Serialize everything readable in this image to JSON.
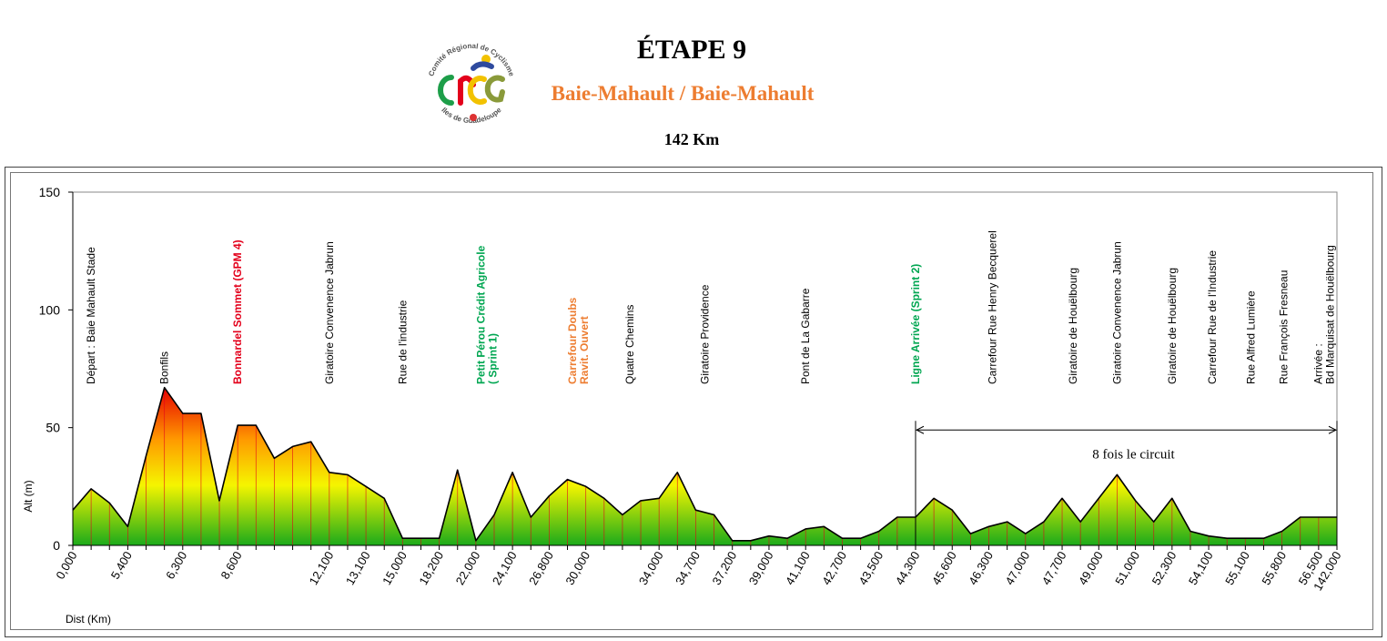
{
  "header": {
    "title": "ÉTAPE 9",
    "route": "Baie-Mahault / Baie-Mahault",
    "distance": "142 Km"
  },
  "logo": {
    "top_text": "Comité Régional de Cyclisme",
    "bottom_text": "Iles de Guadeloupe",
    "letters": "CRCG"
  },
  "colors": {
    "fill_top": "#E60000",
    "fill_mid_orange": "#FF9900",
    "fill_yellow": "#F5F500",
    "fill_bottom": "#1BAA1B",
    "accent_red": "#E3001B",
    "accent_green": "#00A651",
    "accent_orange": "#ED7D31"
  },
  "chart_data": {
    "type": "area",
    "title": "",
    "xlabel": "Dist (Km)",
    "ylabel": "Alt (m)",
    "ylim": [
      0,
      150
    ],
    "yticks": [
      "0",
      "50",
      "100",
      "150"
    ],
    "grid": false,
    "tick_labels": [
      "0,000",
      "5,400",
      "6,300",
      "8,600",
      "12,100",
      "13,100",
      "15,000",
      "18,200",
      "22,000",
      "24,100",
      "26,800",
      "30,000",
      "34,000",
      "34,700",
      "37,200",
      "39,000",
      "41,100",
      "42,700",
      "43,500",
      "44,300",
      "45,600",
      "46,300",
      "47,000",
      "47,700",
      "49,000",
      "51,000",
      "52,300",
      "54,100",
      "55,100",
      "55,800",
      "56,500",
      "142,000"
    ],
    "points": [
      {
        "i": 0,
        "y": 15
      },
      {
        "i": 1,
        "y": 24
      },
      {
        "i": 2,
        "y": 18
      },
      {
        "i": 3,
        "y": 8
      },
      {
        "i": 4,
        "y": 38
      },
      {
        "i": 5,
        "y": 67
      },
      {
        "i": 6,
        "y": 56
      },
      {
        "i": 7,
        "y": 56
      },
      {
        "i": 8,
        "y": 19
      },
      {
        "i": 9,
        "y": 51
      },
      {
        "i": 10,
        "y": 51
      },
      {
        "i": 11,
        "y": 37
      },
      {
        "i": 12,
        "y": 42
      },
      {
        "i": 13,
        "y": 44
      },
      {
        "i": 14,
        "y": 31
      },
      {
        "i": 15,
        "y": 30
      },
      {
        "i": 16,
        "y": 25
      },
      {
        "i": 17,
        "y": 20
      },
      {
        "i": 18,
        "y": 3
      },
      {
        "i": 19,
        "y": 3
      },
      {
        "i": 20,
        "y": 3
      },
      {
        "i": 21,
        "y": 32
      },
      {
        "i": 22,
        "y": 2
      },
      {
        "i": 23,
        "y": 13
      },
      {
        "i": 24,
        "y": 31
      },
      {
        "i": 25,
        "y": 12
      },
      {
        "i": 26,
        "y": 21
      },
      {
        "i": 27,
        "y": 28
      },
      {
        "i": 28,
        "y": 25
      },
      {
        "i": 29,
        "y": 20
      },
      {
        "i": 30,
        "y": 13
      },
      {
        "i": 31,
        "y": 19
      },
      {
        "i": 32,
        "y": 20
      },
      {
        "i": 33,
        "y": 31
      },
      {
        "i": 34,
        "y": 15
      },
      {
        "i": 35,
        "y": 13
      },
      {
        "i": 36,
        "y": 2
      },
      {
        "i": 37,
        "y": 2
      },
      {
        "i": 38,
        "y": 4
      },
      {
        "i": 39,
        "y": 3
      },
      {
        "i": 40,
        "y": 7
      },
      {
        "i": 41,
        "y": 8
      },
      {
        "i": 42,
        "y": 3
      },
      {
        "i": 43,
        "y": 3
      },
      {
        "i": 44,
        "y": 6
      },
      {
        "i": 45,
        "y": 12
      },
      {
        "i": 46,
        "y": 12
      },
      {
        "i": 47,
        "y": 20
      },
      {
        "i": 48,
        "y": 15
      },
      {
        "i": 49,
        "y": 5
      },
      {
        "i": 50,
        "y": 8
      },
      {
        "i": 51,
        "y": 10
      },
      {
        "i": 52,
        "y": 5
      },
      {
        "i": 53,
        "y": 10
      },
      {
        "i": 54,
        "y": 20
      },
      {
        "i": 55,
        "y": 10
      },
      {
        "i": 56,
        "y": 20
      },
      {
        "i": 57,
        "y": 30
      },
      {
        "i": 58,
        "y": 19
      },
      {
        "i": 59,
        "y": 10
      },
      {
        "i": 60,
        "y": 20
      },
      {
        "i": 61,
        "y": 6
      },
      {
        "i": 62,
        "y": 4
      },
      {
        "i": 63,
        "y": 3
      },
      {
        "i": 64,
        "y": 3
      },
      {
        "i": 65,
        "y": 3
      },
      {
        "i": 66,
        "y": 6
      },
      {
        "i": 67,
        "y": 12
      },
      {
        "i": 68,
        "y": 12
      },
      {
        "i": 69,
        "y": 12
      }
    ],
    "tick_positions": [
      0,
      3,
      6,
      9,
      14,
      16,
      18,
      20,
      22,
      24,
      26,
      28,
      32,
      34,
      36,
      38,
      40,
      42,
      44,
      46,
      48,
      50,
      52,
      54,
      56,
      58,
      60,
      62,
      64,
      66,
      68,
      69
    ],
    "annotations": [
      {
        "lines": [
          "Départ : Baie Mahault Stade"
        ],
        "color": "#000000",
        "bold": false,
        "i": 1
      },
      {
        "lines": [
          "Bonfils"
        ],
        "color": "#000000",
        "bold": false,
        "i": 5
      },
      {
        "lines": [
          "Bonnardel Sommet  (GPM 4)"
        ],
        "color": "#E3001B",
        "bold": true,
        "i": 9
      },
      {
        "lines": [
          "Giratoire Convenence Jabrun"
        ],
        "color": "#000000",
        "bold": false,
        "i": 14
      },
      {
        "lines": [
          "Rue de l'industrie"
        ],
        "color": "#000000",
        "bold": false,
        "i": 18
      },
      {
        "lines": [
          "Petit Pérou Crédit Agricole",
          "( Sprint 1)"
        ],
        "color": "#00A651",
        "bold": true,
        "i": 22.6
      },
      {
        "lines": [
          "Carrefour Doubs",
          "Ravit. Ouvert"
        ],
        "color": "#ED7D31",
        "bold": true,
        "i": 27.6
      },
      {
        "lines": [
          "Quatre Chemins"
        ],
        "color": "#000000",
        "bold": false,
        "i": 30.4
      },
      {
        "lines": [
          "Giratoire Providence"
        ],
        "color": "#000000",
        "bold": false,
        "i": 34.5
      },
      {
        "lines": [
          "Pont de La Gabarre"
        ],
        "color": "#000000",
        "bold": false,
        "i": 40
      },
      {
        "lines": [
          "Ligne Arrivée (Sprint  2)"
        ],
        "color": "#00A651",
        "bold": true,
        "i": 46
      },
      {
        "lines": [
          "Carrefour Rue Henry Becquerel"
        ],
        "color": "#000000",
        "bold": false,
        "i": 50.2
      },
      {
        "lines": [
          "Giratoire de  Houëlbourg"
        ],
        "color": "#000000",
        "bold": false,
        "i": 54.6
      },
      {
        "lines": [
          "Giratoire Convenence  Jabrun"
        ],
        "color": "#000000",
        "bold": false,
        "i": 57
      },
      {
        "lines": [
          "Giratoire de Houëlbourg"
        ],
        "color": "#000000",
        "bold": false,
        "i": 60
      },
      {
        "lines": [
          "Carrefour  Rue de l'Industrie"
        ],
        "color": "#000000",
        "bold": false,
        "i": 62.2
      },
      {
        "lines": [
          "Rue Alfred  Lumière"
        ],
        "color": "#000000",
        "bold": false,
        "i": 64.3
      },
      {
        "lines": [
          "Rue François Fresneau"
        ],
        "color": "#000000",
        "bold": false,
        "i": 66.1
      },
      {
        "lines": [
          "Arrivée :",
          "Bd Marquisat de Houëlbourg"
        ],
        "color": "#000000",
        "bold": false,
        "i": 68.3
      }
    ],
    "circuit": {
      "label": "8 fois le circuit",
      "from_i": 46,
      "to_i": 69,
      "y": 49
    }
  }
}
